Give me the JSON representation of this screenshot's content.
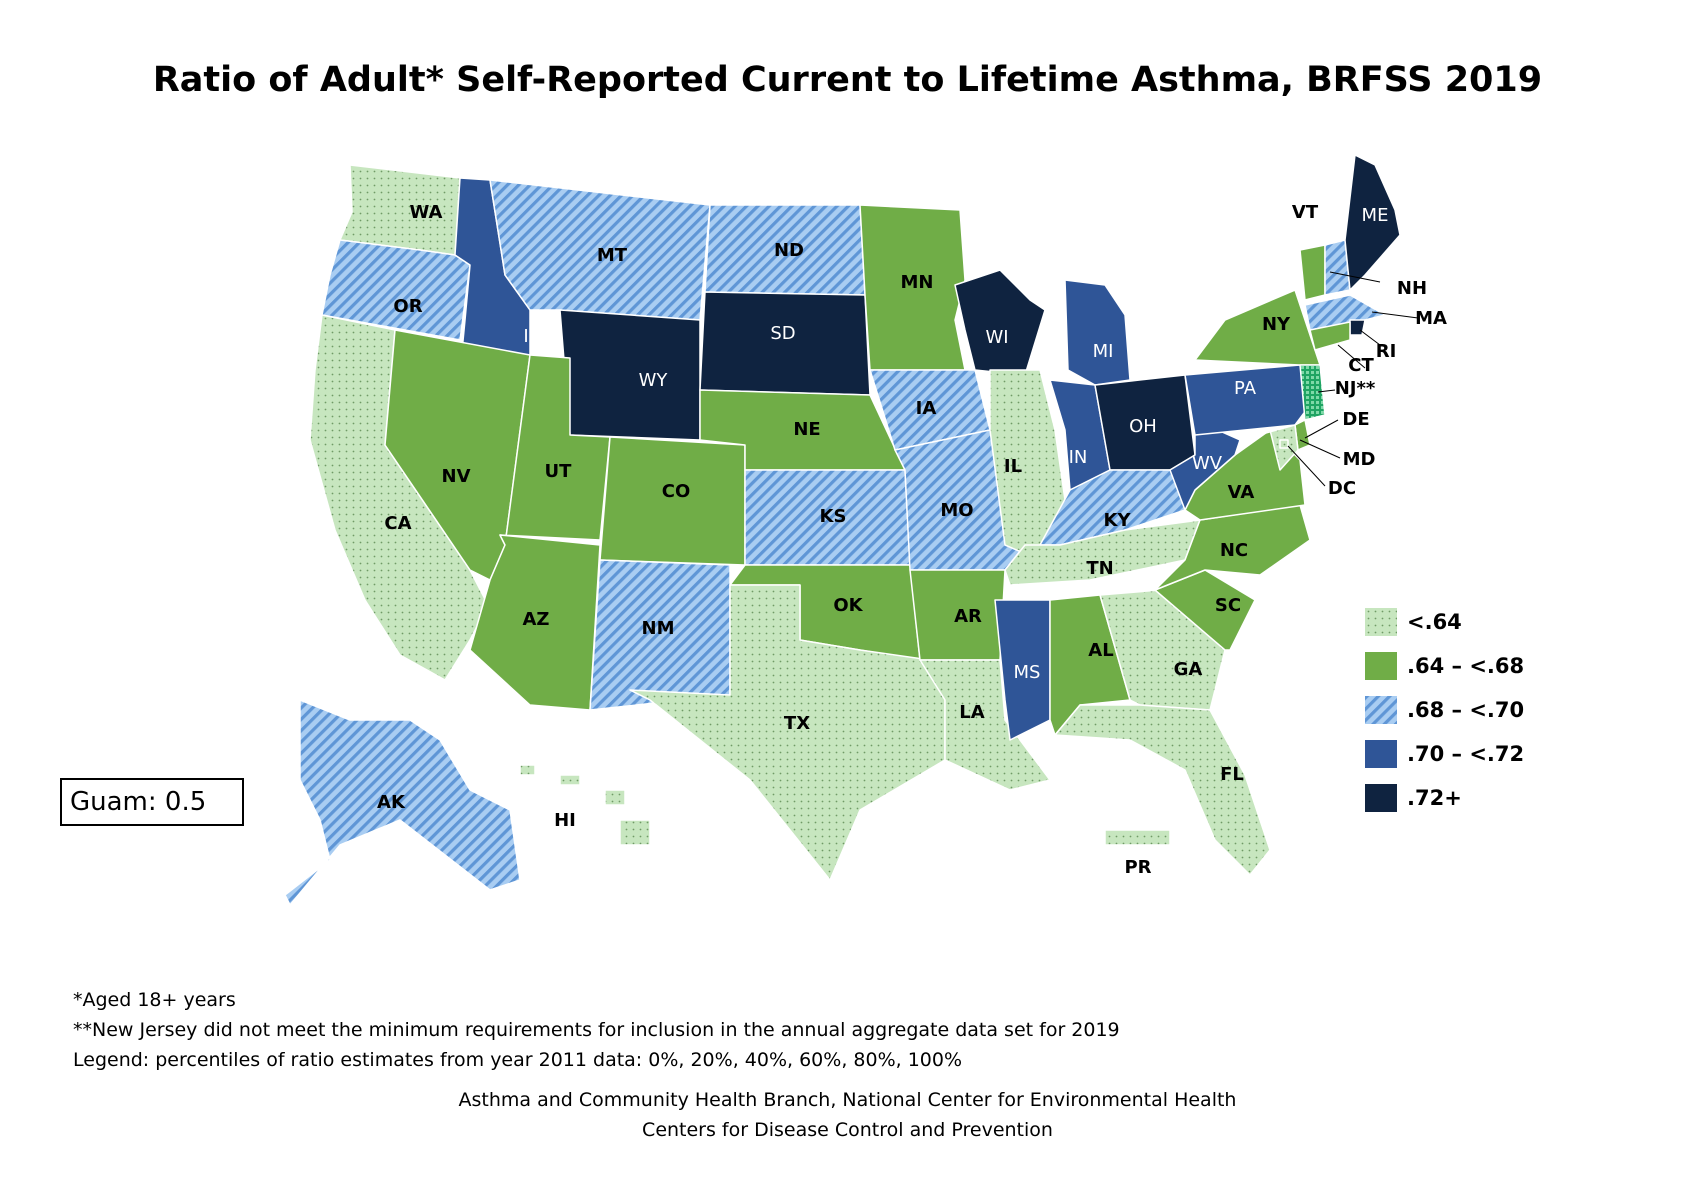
{
  "title": "Ratio of Adult* Self-Reported Current to Lifetime Asthma, BRFSS 2019",
  "categories": [
    {
      "id": "c1",
      "label": "<.64",
      "color": "#c7e6bf",
      "pattern": "dots"
    },
    {
      "id": "c2",
      "label": ".64 – <.68",
      "color": "#70ad47",
      "pattern": "solid"
    },
    {
      "id": "c3",
      "label": ".68 – <.70",
      "color": "#8fb9e8",
      "pattern": "stripes"
    },
    {
      "id": "c4",
      "label": ".70 – <.72",
      "color": "#2f5597",
      "pattern": "solid"
    },
    {
      "id": "c5",
      "label": ".72+",
      "color": "#0f2340",
      "pattern": "solid"
    },
    {
      "id": "na",
      "label": "",
      "color": "#3cb878",
      "pattern": "grid"
    }
  ],
  "states": [
    {
      "abbr": "WA",
      "category": "c1"
    },
    {
      "abbr": "OR",
      "category": "c3"
    },
    {
      "abbr": "CA",
      "category": "c1"
    },
    {
      "abbr": "ID",
      "category": "c4"
    },
    {
      "abbr": "NV",
      "category": "c2"
    },
    {
      "abbr": "MT",
      "category": "c3"
    },
    {
      "abbr": "WY",
      "category": "c5"
    },
    {
      "abbr": "UT",
      "category": "c2"
    },
    {
      "abbr": "AZ",
      "category": "c2"
    },
    {
      "abbr": "CO",
      "category": "c2"
    },
    {
      "abbr": "NM",
      "category": "c3"
    },
    {
      "abbr": "ND",
      "category": "c3"
    },
    {
      "abbr": "SD",
      "category": "c5"
    },
    {
      "abbr": "NE",
      "category": "c2"
    },
    {
      "abbr": "KS",
      "category": "c3"
    },
    {
      "abbr": "OK",
      "category": "c2"
    },
    {
      "abbr": "TX",
      "category": "c1"
    },
    {
      "abbr": "MN",
      "category": "c2"
    },
    {
      "abbr": "IA",
      "category": "c3"
    },
    {
      "abbr": "MO",
      "category": "c3"
    },
    {
      "abbr": "AR",
      "category": "c2"
    },
    {
      "abbr": "LA",
      "category": "c1"
    },
    {
      "abbr": "WI",
      "category": "c5"
    },
    {
      "abbr": "IL",
      "category": "c1"
    },
    {
      "abbr": "MI",
      "category": "c4"
    },
    {
      "abbr": "IN",
      "category": "c4"
    },
    {
      "abbr": "OH",
      "category": "c5"
    },
    {
      "abbr": "KY",
      "category": "c3"
    },
    {
      "abbr": "TN",
      "category": "c1"
    },
    {
      "abbr": "MS",
      "category": "c4"
    },
    {
      "abbr": "AL",
      "category": "c2"
    },
    {
      "abbr": "GA",
      "category": "c1"
    },
    {
      "abbr": "FL",
      "category": "c1"
    },
    {
      "abbr": "SC",
      "category": "c2"
    },
    {
      "abbr": "NC",
      "category": "c2"
    },
    {
      "abbr": "VA",
      "category": "c2"
    },
    {
      "abbr": "WV",
      "category": "c4"
    },
    {
      "abbr": "PA",
      "category": "c4"
    },
    {
      "abbr": "NY",
      "category": "c2"
    },
    {
      "abbr": "VT",
      "category": "c2"
    },
    {
      "abbr": "NH",
      "category": "c3"
    },
    {
      "abbr": "ME",
      "category": "c5"
    },
    {
      "abbr": "MA",
      "category": "c3"
    },
    {
      "abbr": "RI",
      "category": "c5"
    },
    {
      "abbr": "CT",
      "category": "c2"
    },
    {
      "abbr": "NJ**",
      "category": "na"
    },
    {
      "abbr": "DE",
      "category": "c2"
    },
    {
      "abbr": "MD",
      "category": "c1"
    },
    {
      "abbr": "DC",
      "category": "c1"
    },
    {
      "abbr": "AK",
      "category": "c3"
    },
    {
      "abbr": "HI",
      "category": "c1"
    },
    {
      "abbr": "PR",
      "category": "c1"
    }
  ],
  "guam": "Guam: 0.5",
  "notes": [
    "*Aged 18+ years",
    "**New Jersey did not meet the minimum requirements for inclusion in the annual aggregate data set for 2019",
    "Legend: percentiles of ratio estimates from year 2011 data: 0%, 20%, 40%, 60%, 80%, 100%"
  ],
  "credit": [
    "Asthma and Community Health Branch, National Center for Environmental Health",
    "Centers for Disease Control and Prevention"
  ]
}
